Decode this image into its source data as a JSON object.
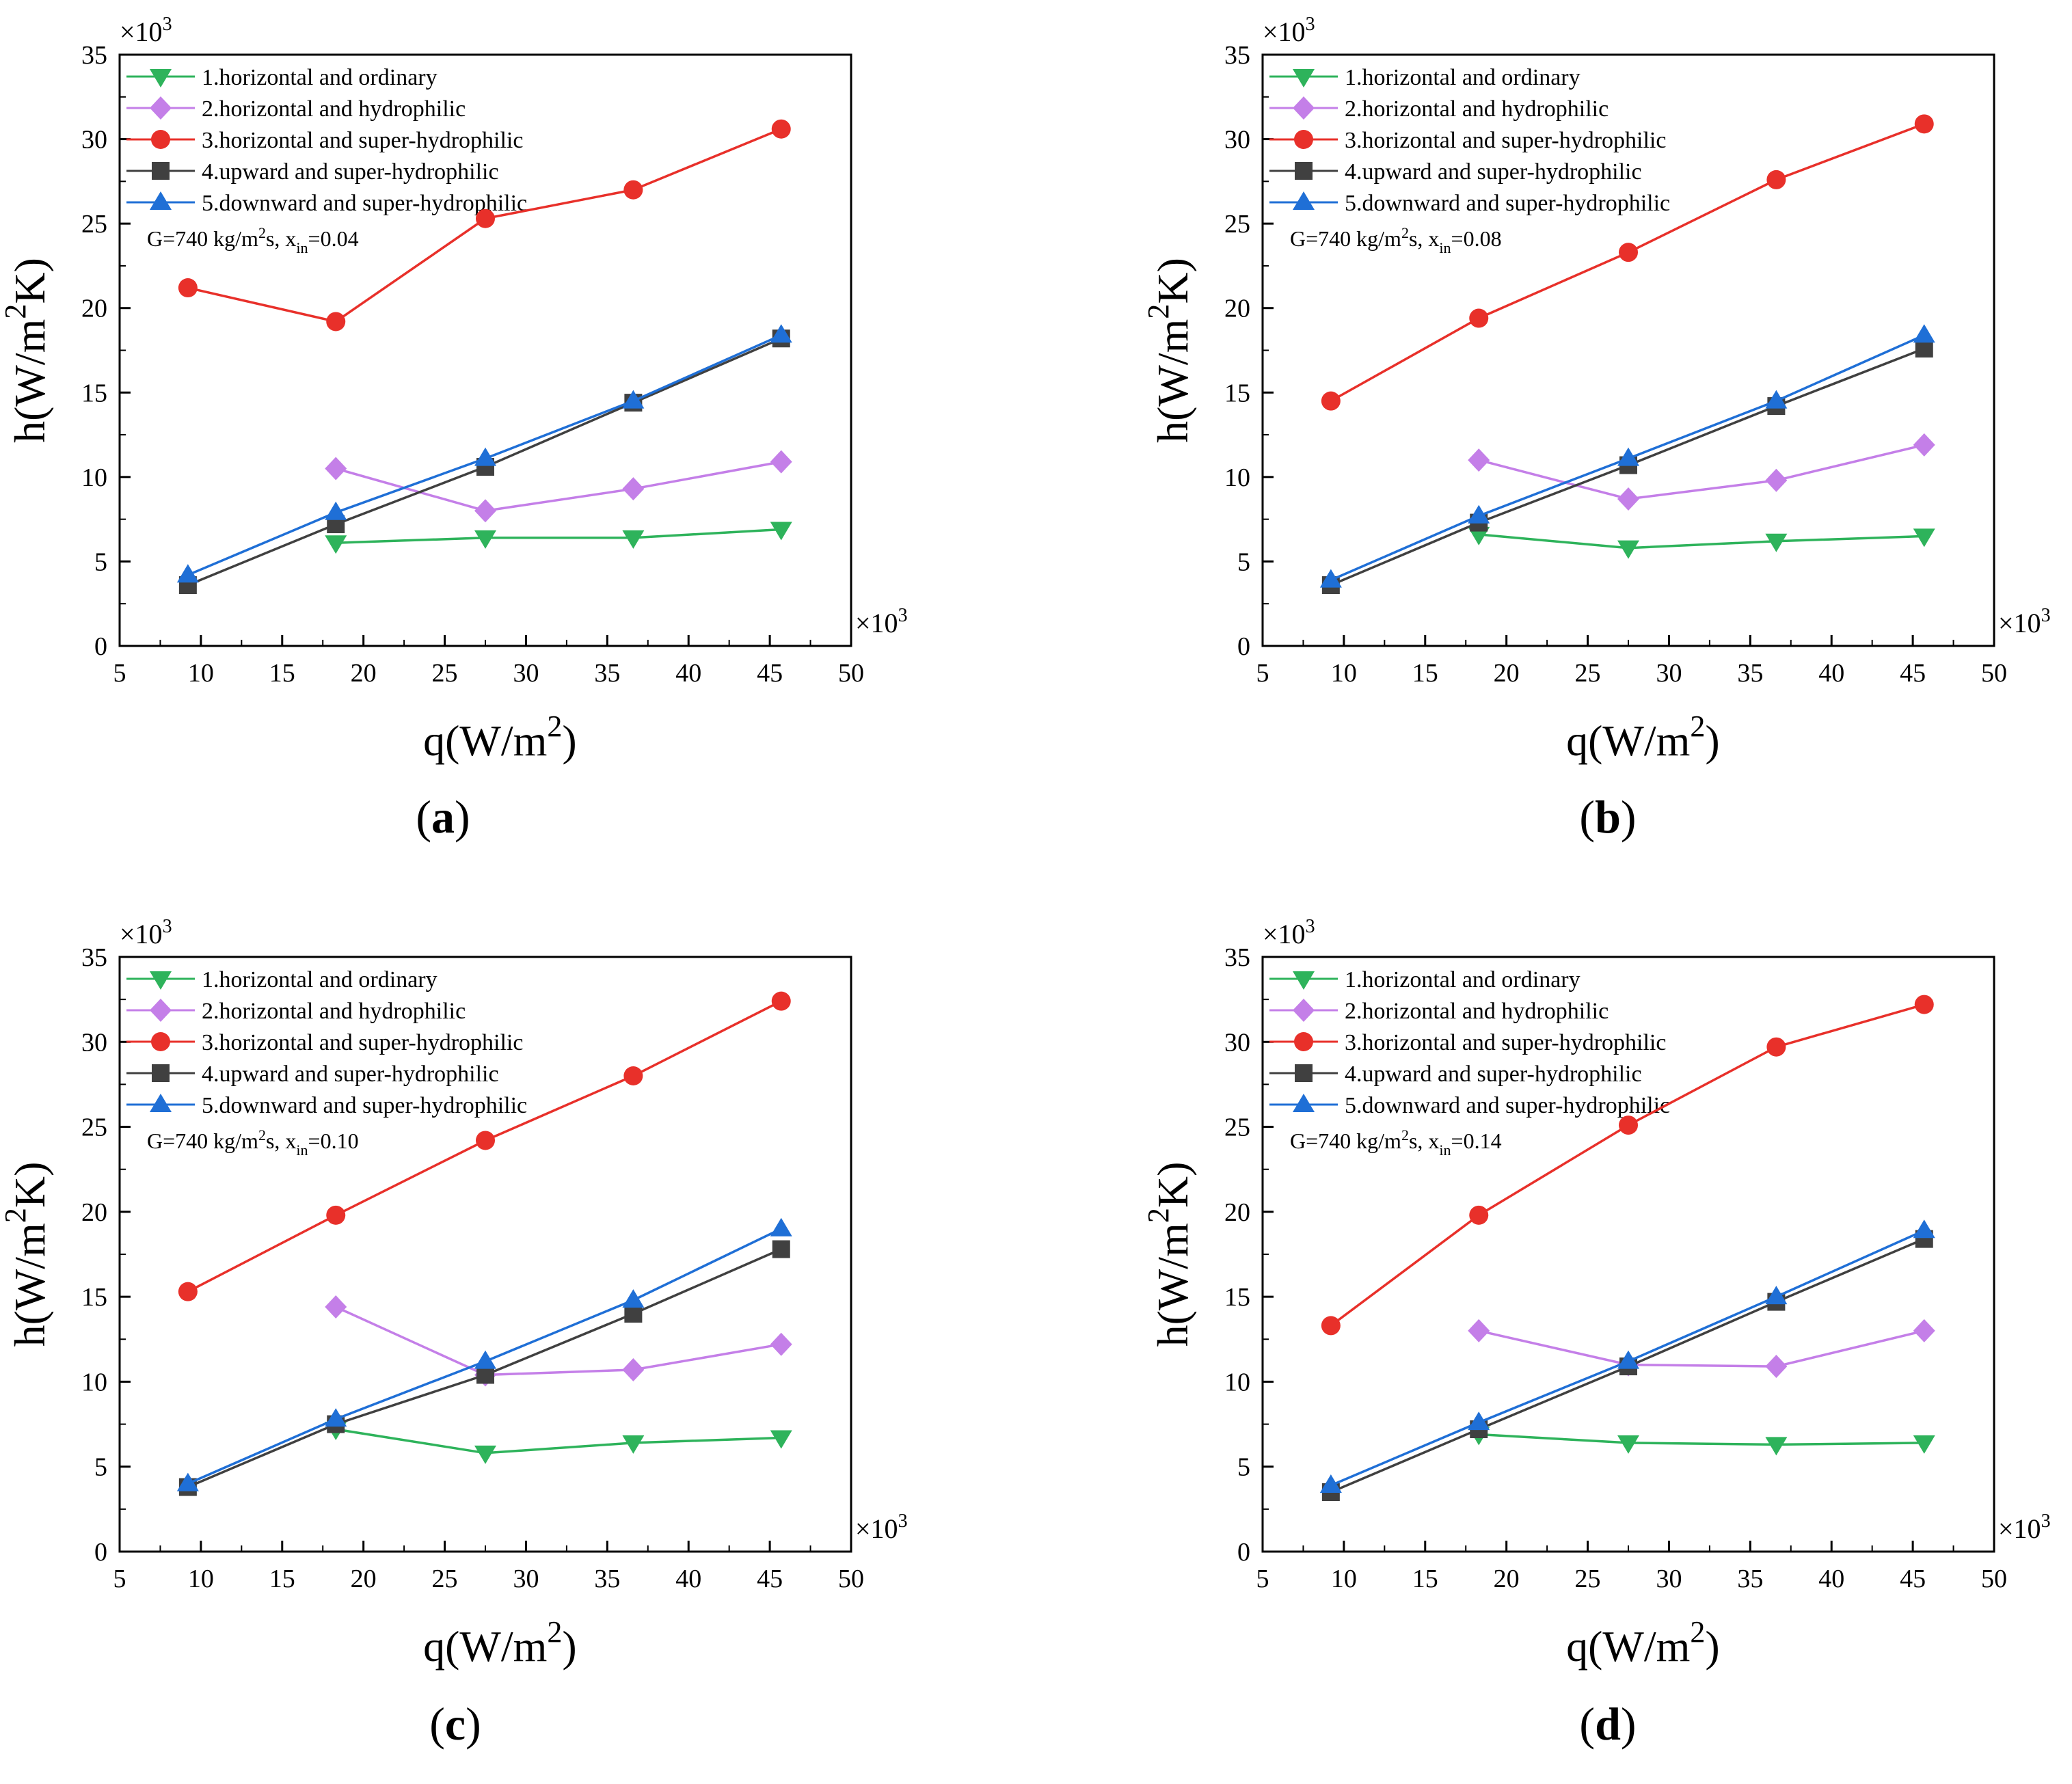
{
  "figure": {
    "common": {
      "x_multiplier": "×10",
      "y_multiplier": "×10",
      "multiplier_exp": "3",
      "xlabel": {
        "base": "q(W/m",
        "sup": "2",
        "tail": ")"
      },
      "ylabel": {
        "base": "h(W/m",
        "sup": "2",
        "tail": "K)"
      },
      "annotation": {
        "g": "G=740 kg/m",
        "g_sup": "2",
        "g_tail": "s, x",
        "sub": "in",
        "eq": "="
      },
      "xlim": [
        5,
        50
      ],
      "ylim": [
        0,
        35
      ],
      "xticks": [
        "5",
        "10",
        "15",
        "20",
        "25",
        "30",
        "35",
        "40",
        "45",
        "50"
      ],
      "yticks": [
        "0",
        "5",
        "10",
        "15",
        "20",
        "25",
        "30",
        "35"
      ],
      "legend_position": "top-left"
    },
    "series_styles": [
      {
        "color": "#2eb35b",
        "marker": "triangle-down"
      },
      {
        "color": "#c47fe8",
        "marker": "diamond"
      },
      {
        "color": "#e8302a",
        "marker": "circle"
      },
      {
        "color": "#404040",
        "marker": "square"
      },
      {
        "color": "#1f6fd6",
        "marker": "triangle-up"
      }
    ]
  },
  "chart_data": [
    {
      "type": "line",
      "panel_label": "a",
      "xin": "0.04",
      "series": [
        {
          "name": "1.horizontal and ordinary",
          "x": [
            18.3,
            27.5,
            36.6,
            45.7
          ],
          "values": [
            6.1,
            6.4,
            6.4,
            6.9
          ]
        },
        {
          "name": "2.horizontal and hydrophilic",
          "x": [
            18.3,
            27.5,
            36.6,
            45.7
          ],
          "values": [
            10.5,
            8.0,
            9.3,
            10.9
          ]
        },
        {
          "name": "3.horizontal and super-hydrophilic",
          "x": [
            9.2,
            18.3,
            27.5,
            36.6,
            45.7
          ],
          "values": [
            21.2,
            19.2,
            25.3,
            27.0,
            30.6
          ]
        },
        {
          "name": "4.upward and super-hydrophilic",
          "x": [
            9.2,
            18.3,
            27.5,
            36.6,
            45.7
          ],
          "values": [
            3.6,
            7.2,
            10.6,
            14.4,
            18.2
          ]
        },
        {
          "name": "5.downward and super-hydrophilic",
          "x": [
            9.2,
            18.3,
            27.5,
            36.6,
            45.7
          ],
          "values": [
            4.2,
            7.9,
            11.1,
            14.5,
            18.4
          ]
        }
      ]
    },
    {
      "type": "line",
      "panel_label": "b",
      "xin": "0.08",
      "series": [
        {
          "name": "1.horizontal and ordinary",
          "x": [
            18.3,
            27.5,
            36.6,
            45.7
          ],
          "values": [
            6.6,
            5.8,
            6.2,
            6.5
          ]
        },
        {
          "name": "2.horizontal and hydrophilic",
          "x": [
            18.3,
            27.5,
            36.6,
            45.7
          ],
          "values": [
            11.0,
            8.7,
            9.8,
            11.9
          ]
        },
        {
          "name": "3.horizontal and super-hydrophilic",
          "x": [
            9.2,
            18.3,
            27.5,
            36.6,
            45.7
          ],
          "values": [
            14.5,
            19.4,
            23.3,
            27.6,
            30.9
          ]
        },
        {
          "name": "4.upward and super-hydrophilic",
          "x": [
            9.2,
            18.3,
            27.5,
            36.6,
            45.7
          ],
          "values": [
            3.6,
            7.3,
            10.7,
            14.2,
            17.6
          ]
        },
        {
          "name": "5.downward and super-hydrophilic",
          "x": [
            9.2,
            18.3,
            27.5,
            36.6,
            45.7
          ],
          "values": [
            3.9,
            7.7,
            11.1,
            14.5,
            18.4
          ]
        }
      ]
    },
    {
      "type": "line",
      "panel_label": "c",
      "xin": "0.10",
      "series": [
        {
          "name": "1.horizontal and ordinary",
          "x": [
            18.3,
            27.5,
            36.6,
            45.7
          ],
          "values": [
            7.2,
            5.8,
            6.4,
            6.7
          ]
        },
        {
          "name": "2.horizontal and hydrophilic",
          "x": [
            18.3,
            27.5,
            36.6,
            45.7
          ],
          "values": [
            14.4,
            10.4,
            10.7,
            12.2
          ]
        },
        {
          "name": "3.horizontal and super-hydrophilic",
          "x": [
            9.2,
            18.3,
            27.5,
            36.6,
            45.7
          ],
          "values": [
            15.3,
            19.8,
            24.2,
            28.0,
            32.4
          ]
        },
        {
          "name": "4.upward and super-hydrophilic",
          "x": [
            9.2,
            18.3,
            27.5,
            36.6,
            45.7
          ],
          "values": [
            3.8,
            7.5,
            10.4,
            14.0,
            17.8
          ]
        },
        {
          "name": "5.downward and super-hydrophilic",
          "x": [
            9.2,
            18.3,
            27.5,
            36.6,
            45.7
          ],
          "values": [
            4.0,
            7.8,
            11.2,
            14.8,
            19.0
          ]
        }
      ]
    },
    {
      "type": "line",
      "panel_label": "d",
      "xin": "0.14",
      "series": [
        {
          "name": "1.horizontal and ordinary",
          "x": [
            18.3,
            27.5,
            36.6,
            45.7
          ],
          "values": [
            6.9,
            6.4,
            6.3,
            6.4
          ]
        },
        {
          "name": "2.horizontal and hydrophilic",
          "x": [
            18.3,
            27.5,
            36.6,
            45.7
          ],
          "values": [
            13.0,
            11.0,
            10.9,
            13.0
          ]
        },
        {
          "name": "3.horizontal and super-hydrophilic",
          "x": [
            9.2,
            18.3,
            27.5,
            36.6,
            45.7
          ],
          "values": [
            13.3,
            19.8,
            25.1,
            29.7,
            32.2
          ]
        },
        {
          "name": "4.upward and super-hydrophilic",
          "x": [
            9.2,
            18.3,
            27.5,
            36.6,
            45.7
          ],
          "values": [
            3.5,
            7.2,
            10.9,
            14.7,
            18.4
          ]
        },
        {
          "name": "5.downward and super-hydrophilic",
          "x": [
            9.2,
            18.3,
            27.5,
            36.6,
            45.7
          ],
          "values": [
            3.9,
            7.6,
            11.2,
            15.0,
            18.9
          ]
        }
      ]
    }
  ]
}
